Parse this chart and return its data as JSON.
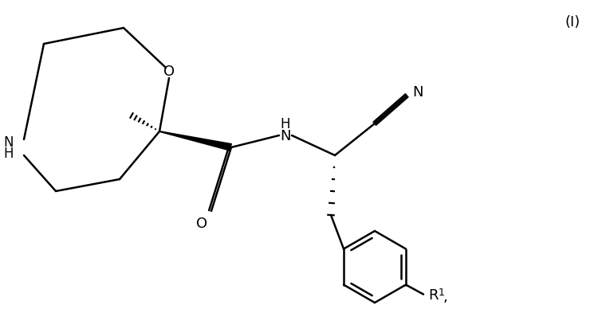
{
  "background_color": "#ffffff",
  "line_color": "#000000",
  "line_width": 1.8,
  "fig_width": 7.55,
  "fig_height": 3.93,
  "dpi": 100,
  "label_I": "(I)",
  "label_O_ring": "O",
  "label_NH_ring": "N\nH",
  "label_NH_amide": "H\nN",
  "label_N_cyano": "N",
  "label_O_carbonyl": "O",
  "label_R1": "R",
  "superscript_1": "1",
  "label_comma": ","
}
